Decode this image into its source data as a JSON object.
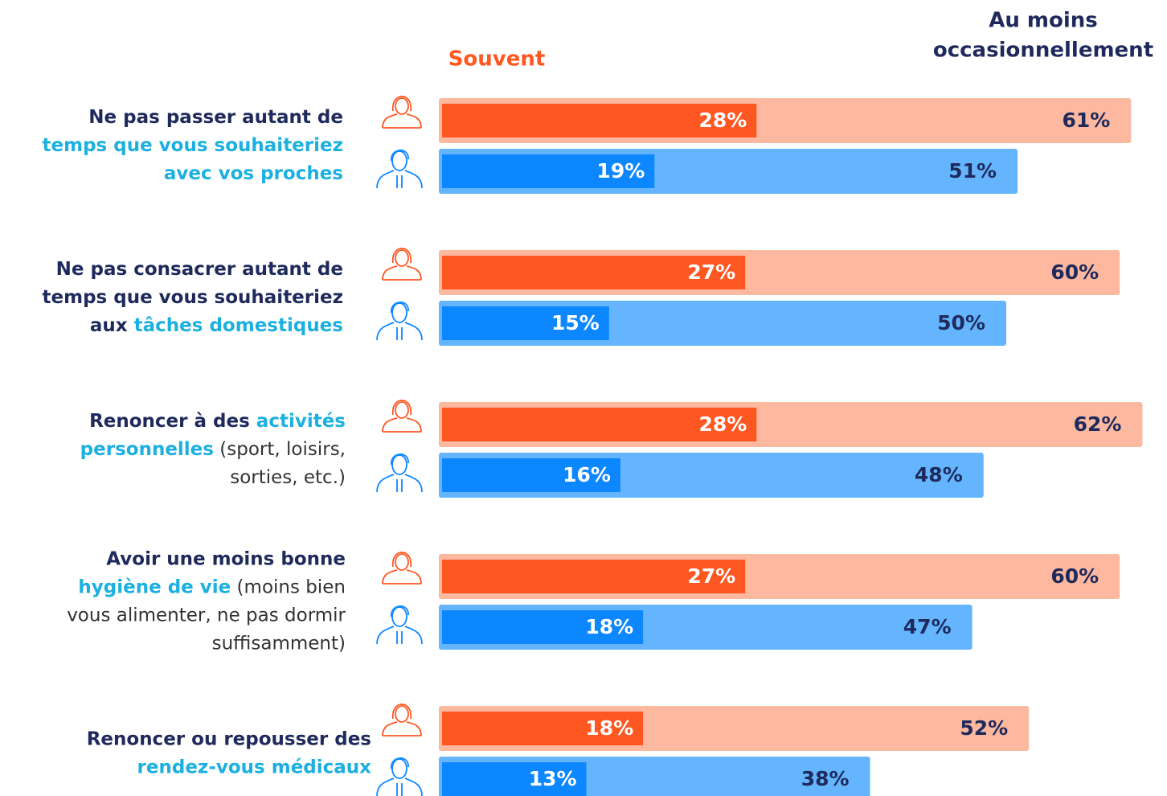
{
  "chart_data": {
    "type": "bar",
    "orientation": "horizontal",
    "headers": {
      "often": "Souvent",
      "occasional": [
        "Au moins",
        "occasionnellement"
      ]
    },
    "labels": [
      [
        [
          {
            "text": "Ne pas passer autant de",
            "style": "b"
          }
        ],
        [
          {
            "text": "temps que vous souhaiteriez",
            "style": "a"
          }
        ],
        [
          {
            "text": "avec vos proches",
            "style": "a"
          }
        ]
      ],
      [
        [
          {
            "text": "Ne pas consacrer autant de",
            "style": "b"
          }
        ],
        [
          {
            "text": "temps que vous souhaiteriez",
            "style": "b"
          }
        ],
        [
          {
            "text": "aux ",
            "style": "b"
          },
          {
            "text": "tâches domestiques",
            "style": "a"
          }
        ]
      ],
      [
        [
          {
            "text": "Renoncer à des ",
            "style": "b"
          },
          {
            "text": "activités",
            "style": "a"
          }
        ],
        [
          {
            "text": "personnelles",
            "style": "a"
          },
          {
            "text": " (sport, loisirs,",
            "style": "n"
          }
        ],
        [
          {
            "text": "sorties, etc.)",
            "style": "n"
          }
        ]
      ],
      [
        [
          {
            "text": "Avoir une moins bonne",
            "style": "b"
          }
        ],
        [
          {
            "text": "hygiène de vie",
            "style": "a"
          },
          {
            "text": " (moins bien",
            "style": "n"
          }
        ],
        [
          {
            "text": "vous alimenter, ne pas dormir",
            "style": "n"
          }
        ],
        [
          {
            "text": "suffisamment)",
            "style": "n"
          }
        ]
      ],
      [
        [
          {
            "text": "Renoncer ou repousser des",
            "style": "b"
          }
        ],
        [
          {
            "text": "rendez-vous médicaux",
            "style": "a"
          }
        ]
      ]
    ],
    "series": {
      "women": {
        "color_often": "#ff5722",
        "color_occasional": "#fdb8a0",
        "often": [
          28,
          27,
          28,
          27,
          18
        ],
        "often_labels": [
          "28%",
          "27%",
          "28%",
          "27%",
          "18%"
        ],
        "occasional": [
          61,
          60,
          62,
          60,
          52
        ],
        "occasional_labels": [
          "61%",
          "60%",
          "62%",
          "60%",
          "52%"
        ]
      },
      "men": {
        "color_often": "#0d87ff",
        "color_occasional": "#64b5fe",
        "often": [
          19,
          15,
          16,
          18,
          13
        ],
        "often_labels": [
          "19%",
          "15%",
          "16%",
          "18%",
          "13%"
        ],
        "occasional": [
          51,
          50,
          48,
          47,
          38
        ],
        "occasional_labels": [
          "51%",
          "50%",
          "48%",
          "47%",
          "38%"
        ]
      }
    }
  }
}
